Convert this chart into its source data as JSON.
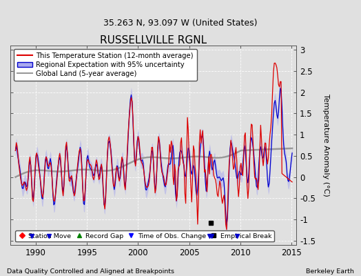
{
  "title": "RUSSELLVILLE RGNL",
  "subtitle": "35.263 N, 93.097 W (United States)",
  "ylabel": "Temperature Anomaly (°C)",
  "xlabel_note": "Data Quality Controlled and Aligned at Breakpoints",
  "credit": "Berkeley Earth",
  "xlim": [
    1987.5,
    2015.5
  ],
  "ylim": [
    -1.6,
    3.1
  ],
  "yticks": [
    -1.5,
    -1.0,
    -0.5,
    0.0,
    0.5,
    1.0,
    1.5,
    2.0,
    2.5,
    3.0
  ],
  "xticks": [
    1990,
    1995,
    2000,
    2005,
    2010,
    2015
  ],
  "bg_color": "#e0e0e0",
  "plot_bg_color": "#e0e0e0",
  "red_line_color": "#dd0000",
  "blue_line_color": "#0000cc",
  "blue_band_color": "#aaaaee",
  "gray_line_color": "#999999",
  "title_fontsize": 11,
  "subtitle_fontsize": 9,
  "legend_items": [
    "This Temperature Station (12-month average)",
    "Regional Expectation with 95% uncertainty",
    "Global Land (5-year average)"
  ],
  "obs_change_times": [
    1989.6,
    1991.3,
    2007.0,
    2007.2,
    2009.7
  ],
  "empirical_break_times": [
    2007.15
  ],
  "empirical_break_y": -1.08
}
